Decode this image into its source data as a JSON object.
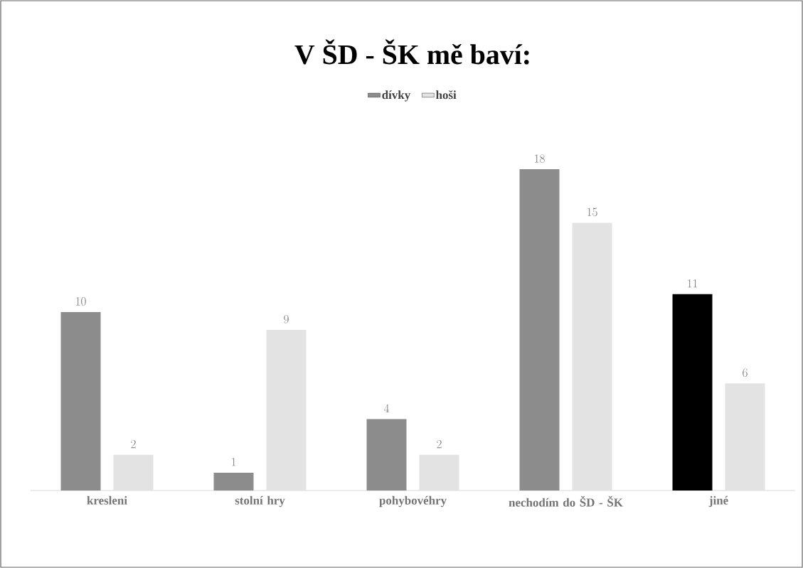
{
  "chart_data": {
    "type": "bar",
    "title": "V ŠD - ŠK mě  baví:",
    "categories": [
      "kresleni",
      "stolní hry",
      "pohybovéhry",
      "nechodím do ŠD - ŠK",
      "jiné"
    ],
    "series": [
      {
        "name": "dívky",
        "color": "#8c8c8c",
        "colors": [
          "#8c8c8c",
          "#8c8c8c",
          "#8c8c8c",
          "#8c8c8c",
          "#000000"
        ],
        "values": [
          10,
          1,
          4,
          18,
          11
        ]
      },
      {
        "name": "hoši",
        "color": "#e3e3e3",
        "values": [
          2,
          9,
          2,
          15,
          6
        ]
      }
    ],
    "data_labels": true,
    "legend": "top"
  }
}
